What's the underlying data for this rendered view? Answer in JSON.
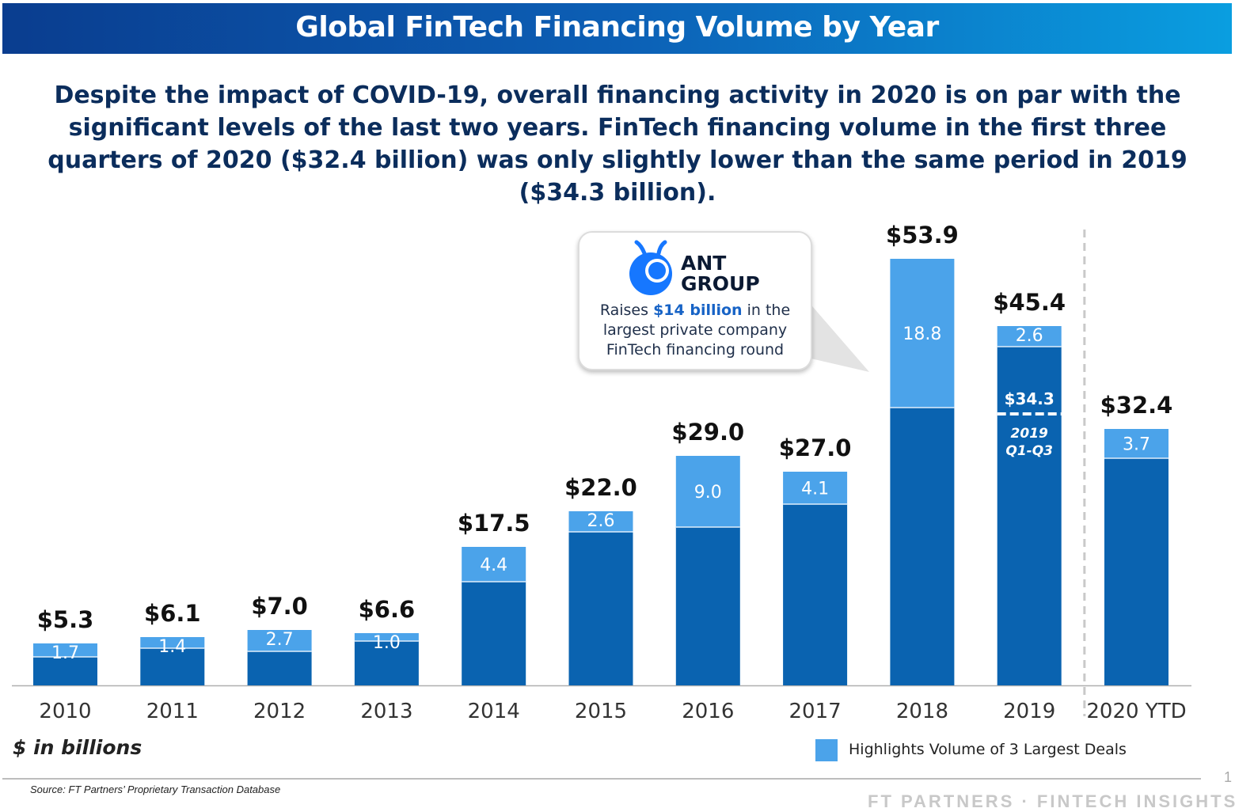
{
  "header": {
    "title": "Global FinTech Financing Volume by Year",
    "subtitle": "Despite the impact of COVID-19, overall financing activity in 2020 is on par with the significant levels of the last two years. FinTech financing volume in the first three quarters of 2020 ($32.4 billion) was only slightly lower than the same period in 2019 ($34.3 billion)."
  },
  "callout": {
    "company": "ANT GROUP",
    "text_pre": "Raises ",
    "text_highlight": "$14 billion",
    "text_post": " in the largest private company FinTech financing round",
    "logo_icon": "ant-group-logo-icon"
  },
  "units_label": "$ in billions",
  "legend": {
    "label": "Highlights Volume of 3 Largest Deals",
    "color": "#4ba3ea"
  },
  "source": "Source: FT Partners’ Proprietary Transaction Database",
  "page_number": "1",
  "footer_brand": "FT PARTNERS · FINTECH INSIGHTS",
  "chart_data": {
    "type": "bar",
    "stacked": true,
    "categories": [
      "2010",
      "2011",
      "2012",
      "2013",
      "2014",
      "2015",
      "2016",
      "2017",
      "2018",
      "2019",
      "2020 YTD"
    ],
    "totals": [
      5.3,
      6.1,
      7.0,
      6.6,
      17.5,
      22.0,
      29.0,
      27.0,
      53.9,
      45.4,
      32.4
    ],
    "total_labels": [
      "$5.3",
      "$6.1",
      "$7.0",
      "$6.6",
      "$17.5",
      "$22.0",
      "$29.0",
      "$27.0",
      "$53.9",
      "$45.4",
      "$32.4"
    ],
    "series": [
      {
        "name": "Highlights Volume of 3 Largest Deals",
        "values": [
          1.7,
          1.4,
          2.7,
          1.0,
          4.4,
          2.6,
          9.0,
          4.1,
          18.8,
          2.6,
          3.7
        ],
        "labels": [
          "1.7",
          "1.4",
          "2.7",
          "1.0",
          "4.4",
          "2.6",
          "9.0",
          "4.1",
          "18.8",
          "2.6",
          "3.7"
        ]
      }
    ],
    "colors": {
      "base": "#0a63b0",
      "highlight": "#4ba3ea",
      "total_label": "#111111"
    },
    "marker_2019": {
      "value": 34.3,
      "label": "$34.3",
      "caption_line1": "2019",
      "caption_line2": "Q1-Q3"
    },
    "separator_before": "2020 YTD",
    "ylim": [
      0,
      56
    ],
    "grid": false,
    "legend_position": "bottom-right"
  }
}
